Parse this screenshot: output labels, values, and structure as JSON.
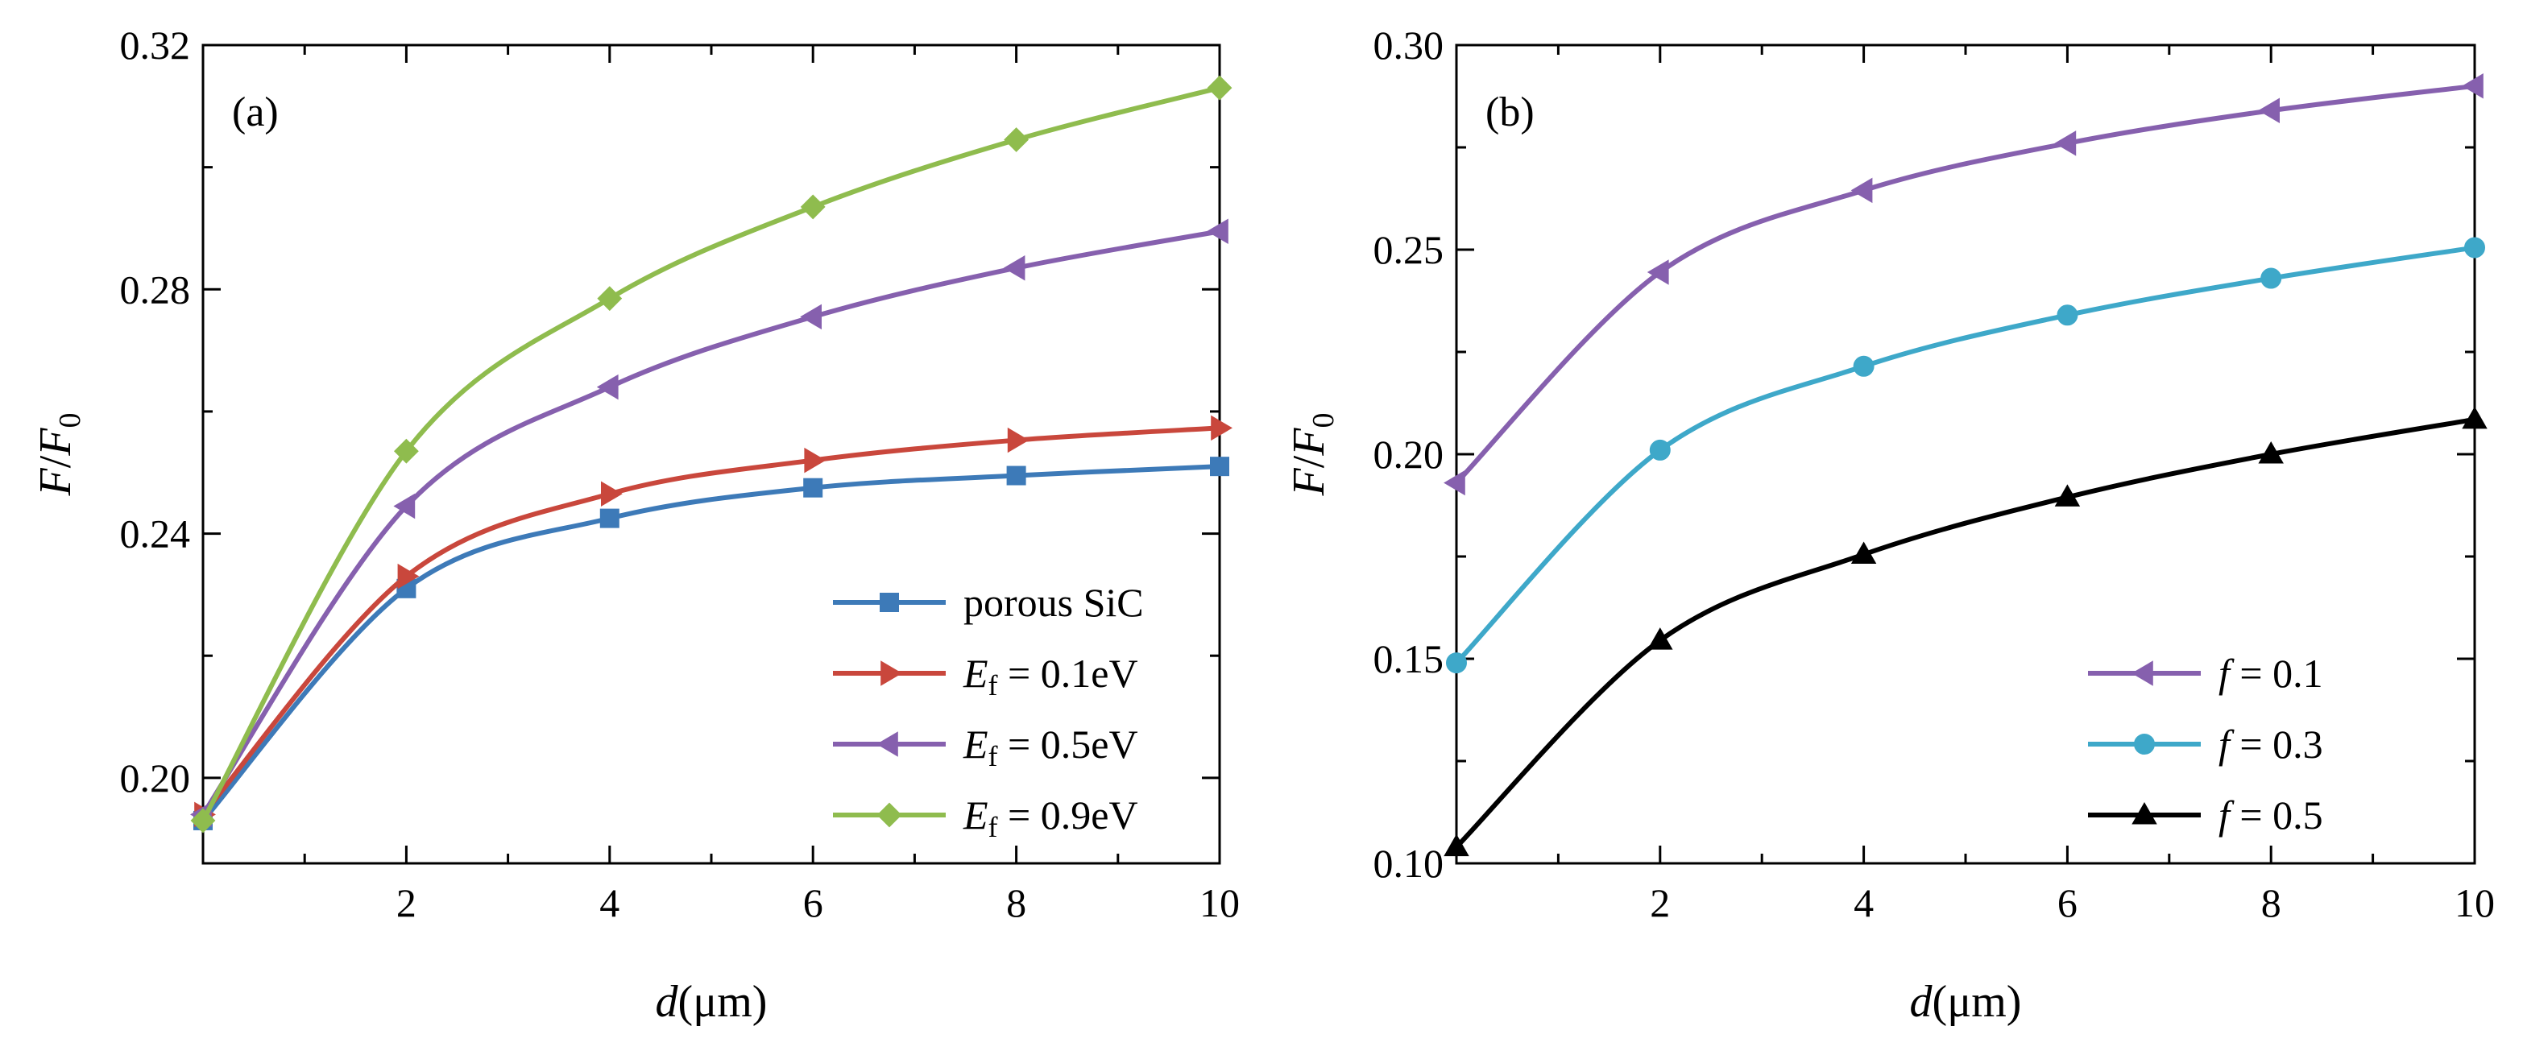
{
  "chart_data": [
    {
      "type": "line",
      "panel_label": "(a)",
      "xlabel": {
        "var": "d",
        "unit": "(μm)"
      },
      "ylabel": {
        "var": "F",
        "sep": "/",
        "var2": "F",
        "sub": "0"
      },
      "xlim": [
        0,
        10
      ],
      "ylim": [
        0.186,
        0.32
      ],
      "x_ticks": [
        2,
        4,
        6,
        8,
        10
      ],
      "x_tick_labels": [
        "2",
        "4",
        "6",
        "8",
        "10"
      ],
      "y_ticks": [
        0.2,
        0.24,
        0.28,
        0.32
      ],
      "y_tick_labels": [
        "0.20",
        "0.24",
        "0.28",
        "0.32"
      ],
      "legend_position": "bottom-right",
      "series": [
        {
          "name": "porous SiC",
          "legend": {
            "main": "porous SiC"
          },
          "color": "#3d7ab8",
          "marker": "square",
          "x": [
            0,
            2,
            4,
            6,
            8,
            10
          ],
          "values": [
            0.193,
            0.231,
            0.2425,
            0.2475,
            0.2495,
            0.251
          ]
        },
        {
          "name": "E_f = 0.1eV",
          "legend": {
            "var": "E",
            "sub": "f",
            "rest": " = 0.1eV"
          },
          "color": "#c9473c",
          "marker": "triangle-right",
          "x": [
            0,
            2,
            4,
            6,
            8,
            10
          ],
          "values": [
            0.194,
            0.233,
            0.2465,
            0.252,
            0.2553,
            0.2573
          ]
        },
        {
          "name": "E_f = 0.5eV",
          "legend": {
            "var": "E",
            "sub": "f",
            "rest": " = 0.5eV"
          },
          "color": "#8660ae",
          "marker": "triangle-left",
          "x": [
            0,
            2,
            4,
            6,
            8,
            10
          ],
          "values": [
            0.194,
            0.2445,
            0.264,
            0.2755,
            0.2835,
            0.2895
          ]
        },
        {
          "name": "E_f = 0.9eV",
          "legend": {
            "var": "E",
            "sub": "f",
            "rest": " = 0.9eV"
          },
          "color": "#8fbc4e",
          "marker": "diamond",
          "x": [
            0,
            2,
            4,
            6,
            8,
            10
          ],
          "values": [
            0.193,
            0.2535,
            0.2785,
            0.2935,
            0.3045,
            0.313
          ]
        }
      ]
    },
    {
      "type": "line",
      "panel_label": "(b)",
      "xlabel": {
        "var": "d",
        "unit": "(μm)"
      },
      "ylabel": {
        "var": "F",
        "sep": "/",
        "var2": "F",
        "sub": "0"
      },
      "xlim": [
        0,
        10
      ],
      "ylim": [
        0.1,
        0.3
      ],
      "x_ticks": [
        2,
        4,
        6,
        8,
        10
      ],
      "x_tick_labels": [
        "2",
        "4",
        "6",
        "8",
        "10"
      ],
      "y_ticks": [
        0.1,
        0.15,
        0.2,
        0.25,
        0.3
      ],
      "y_tick_labels": [
        "0.10",
        "0.15",
        "0.20",
        "0.25",
        "0.30"
      ],
      "legend_position": "bottom-right",
      "series": [
        {
          "name": "f = 0.1",
          "legend": {
            "var": "f",
            "rest": " = 0.1"
          },
          "color": "#8660ae",
          "marker": "triangle-left",
          "x": [
            0,
            2,
            4,
            6,
            8,
            10
          ],
          "values": [
            0.193,
            0.2445,
            0.2645,
            0.276,
            0.284,
            0.29
          ]
        },
        {
          "name": "f = 0.3",
          "legend": {
            "var": "f",
            "rest": " = 0.3"
          },
          "color": "#3ea8c9",
          "marker": "circle",
          "x": [
            0,
            2,
            4,
            6,
            8,
            10
          ],
          "values": [
            0.149,
            0.201,
            0.2215,
            0.234,
            0.243,
            0.2505
          ]
        },
        {
          "name": "f = 0.5",
          "legend": {
            "var": "f",
            "rest": " = 0.5"
          },
          "color": "#000000",
          "marker": "triangle-up",
          "x": [
            0,
            2,
            4,
            6,
            8,
            10
          ],
          "values": [
            0.104,
            0.1545,
            0.1755,
            0.1895,
            0.2,
            0.2085
          ]
        }
      ]
    }
  ]
}
